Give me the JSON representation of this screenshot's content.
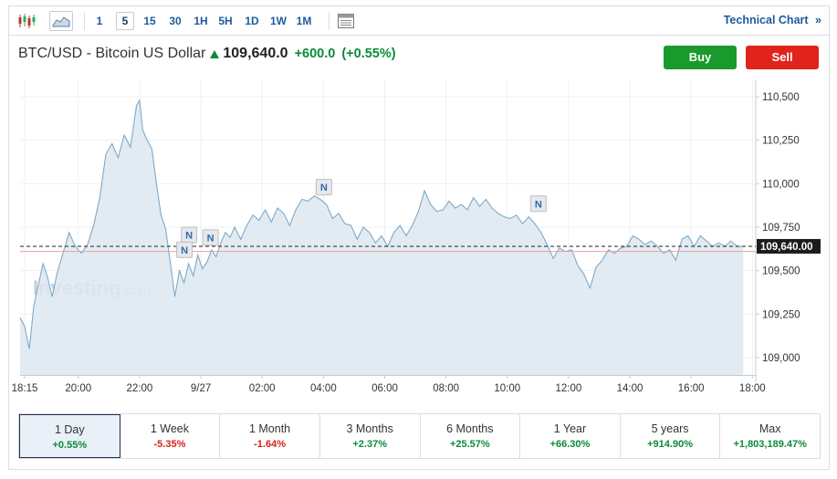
{
  "toolbar": {
    "chart_type_icons": [
      "candlestick-icon",
      "area-chart-icon"
    ],
    "timeframes": [
      "1",
      "5",
      "15",
      "30",
      "1H",
      "5H",
      "1D",
      "1W",
      "1M"
    ],
    "active_timeframe": "5",
    "table_icon": "table-view-icon",
    "technical_chart_label": "Technical Chart",
    "technical_chart_arrow": "»"
  },
  "header": {
    "name": "BTC/USD - Bitcoin US Dollar",
    "price": "109,640.0",
    "change": "+600.0",
    "change_pct": "(+0.55%)",
    "direction": "up"
  },
  "buttons": {
    "buy": "Buy",
    "sell": "Sell"
  },
  "colors": {
    "buy": "#1a9a2b",
    "sell": "#e0241c",
    "line": "#7fa9c9",
    "fill": "#dde8f0",
    "positive": "#0b8a3a",
    "negative": "#d3231b"
  },
  "watermark": {
    "text": "Investing",
    "suffix": ".com"
  },
  "chart_data": {
    "type": "area",
    "ylim": [
      108900,
      110600
    ],
    "y_ticks": [
      {
        "value": 110500,
        "label": "110,500"
      },
      {
        "value": 110250,
        "label": "110,250"
      },
      {
        "value": 110000,
        "label": "110,000"
      },
      {
        "value": 109750,
        "label": "109,750"
      },
      {
        "value": 109500,
        "label": "109,500"
      },
      {
        "value": 109250,
        "label": "109,250"
      },
      {
        "value": 109000,
        "label": "109,000"
      }
    ],
    "x_ticks": [
      {
        "hour": 18.25,
        "label": "18:15"
      },
      {
        "hour": 20,
        "label": "20:00"
      },
      {
        "hour": 22,
        "label": "22:00"
      },
      {
        "hour": 24,
        "label": "9/27"
      },
      {
        "hour": 26,
        "label": "02:00"
      },
      {
        "hour": 28,
        "label": "04:00"
      },
      {
        "hour": 30,
        "label": "06:00"
      },
      {
        "hour": 32,
        "label": "08:00"
      },
      {
        "hour": 34,
        "label": "10:00"
      },
      {
        "hour": 36,
        "label": "12:00"
      },
      {
        "hour": 38,
        "label": "14:00"
      },
      {
        "hour": 40,
        "label": "16:00"
      },
      {
        "hour": 42,
        "label": "18:00"
      }
    ],
    "xlim_hours": [
      18.1,
      42.05
    ],
    "last_price": {
      "value": 109640,
      "label": "109,640.00"
    },
    "reference_line": 109610,
    "news_markers": [
      {
        "hour": 23.6,
        "value": 109650,
        "label": "N"
      },
      {
        "hour": 23.45,
        "value": 109565,
        "label": "N"
      },
      {
        "hour": 24.3,
        "value": 109635,
        "label": "N"
      },
      {
        "hour": 28.0,
        "value": 109925,
        "label": "N"
      },
      {
        "hour": 35.0,
        "value": 109830,
        "label": "N"
      }
    ],
    "series": [
      {
        "points": [
          [
            18.1,
            109230
          ],
          [
            18.25,
            109180
          ],
          [
            18.4,
            109050
          ],
          [
            18.55,
            109300
          ],
          [
            18.7,
            109420
          ],
          [
            18.85,
            109540
          ],
          [
            19.0,
            109460
          ],
          [
            19.15,
            109350
          ],
          [
            19.3,
            109480
          ],
          [
            19.5,
            109600
          ],
          [
            19.7,
            109720
          ],
          [
            19.9,
            109640
          ],
          [
            20.1,
            109600
          ],
          [
            20.3,
            109650
          ],
          [
            20.5,
            109760
          ],
          [
            20.7,
            109920
          ],
          [
            20.9,
            110170
          ],
          [
            21.1,
            110230
          ],
          [
            21.3,
            110150
          ],
          [
            21.5,
            110280
          ],
          [
            21.7,
            110210
          ],
          [
            21.9,
            110450
          ],
          [
            22.0,
            110480
          ],
          [
            22.1,
            110310
          ],
          [
            22.25,
            110250
          ],
          [
            22.4,
            110200
          ],
          [
            22.55,
            110000
          ],
          [
            22.7,
            109820
          ],
          [
            22.85,
            109740
          ],
          [
            23.0,
            109550
          ],
          [
            23.15,
            109350
          ],
          [
            23.3,
            109500
          ],
          [
            23.45,
            109430
          ],
          [
            23.6,
            109540
          ],
          [
            23.75,
            109470
          ],
          [
            23.9,
            109590
          ],
          [
            24.05,
            109510
          ],
          [
            24.2,
            109550
          ],
          [
            24.35,
            109620
          ],
          [
            24.5,
            109580
          ],
          [
            24.65,
            109660
          ],
          [
            24.8,
            109720
          ],
          [
            24.95,
            109690
          ],
          [
            25.1,
            109750
          ],
          [
            25.3,
            109680
          ],
          [
            25.5,
            109760
          ],
          [
            25.7,
            109820
          ],
          [
            25.9,
            109790
          ],
          [
            26.1,
            109850
          ],
          [
            26.3,
            109780
          ],
          [
            26.5,
            109860
          ],
          [
            26.7,
            109830
          ],
          [
            26.9,
            109760
          ],
          [
            27.1,
            109850
          ],
          [
            27.3,
            109910
          ],
          [
            27.5,
            109900
          ],
          [
            27.7,
            109930
          ],
          [
            27.9,
            109910
          ],
          [
            28.1,
            109880
          ],
          [
            28.3,
            109800
          ],
          [
            28.5,
            109830
          ],
          [
            28.7,
            109770
          ],
          [
            28.9,
            109760
          ],
          [
            29.1,
            109680
          ],
          [
            29.3,
            109750
          ],
          [
            29.5,
            109720
          ],
          [
            29.7,
            109660
          ],
          [
            29.9,
            109700
          ],
          [
            30.1,
            109640
          ],
          [
            30.3,
            109720
          ],
          [
            30.5,
            109760
          ],
          [
            30.7,
            109700
          ],
          [
            30.9,
            109760
          ],
          [
            31.1,
            109840
          ],
          [
            31.3,
            109960
          ],
          [
            31.5,
            109880
          ],
          [
            31.7,
            109840
          ],
          [
            31.9,
            109850
          ],
          [
            32.1,
            109900
          ],
          [
            32.3,
            109860
          ],
          [
            32.5,
            109880
          ],
          [
            32.7,
            109850
          ],
          [
            32.9,
            109920
          ],
          [
            33.1,
            109870
          ],
          [
            33.3,
            109910
          ],
          [
            33.5,
            109860
          ],
          [
            33.7,
            109830
          ],
          [
            33.9,
            109810
          ],
          [
            34.1,
            109800
          ],
          [
            34.3,
            109820
          ],
          [
            34.5,
            109770
          ],
          [
            34.7,
            109810
          ],
          [
            34.9,
            109770
          ],
          [
            35.1,
            109720
          ],
          [
            35.3,
            109650
          ],
          [
            35.5,
            109570
          ],
          [
            35.7,
            109630
          ],
          [
            35.9,
            109610
          ],
          [
            36.1,
            109620
          ],
          [
            36.3,
            109530
          ],
          [
            36.5,
            109480
          ],
          [
            36.7,
            109400
          ],
          [
            36.9,
            109520
          ],
          [
            37.1,
            109560
          ],
          [
            37.3,
            109620
          ],
          [
            37.5,
            109600
          ],
          [
            37.7,
            109630
          ],
          [
            37.9,
            109640
          ],
          [
            38.1,
            109700
          ],
          [
            38.3,
            109680
          ],
          [
            38.5,
            109650
          ],
          [
            38.7,
            109670
          ],
          [
            38.9,
            109640
          ],
          [
            39.1,
            109600
          ],
          [
            39.3,
            109620
          ],
          [
            39.5,
            109560
          ],
          [
            39.7,
            109680
          ],
          [
            39.9,
            109700
          ],
          [
            40.1,
            109640
          ],
          [
            40.3,
            109700
          ],
          [
            40.5,
            109670
          ],
          [
            40.7,
            109640
          ],
          [
            40.9,
            109660
          ],
          [
            41.1,
            109640
          ],
          [
            41.3,
            109670
          ],
          [
            41.5,
            109640
          ],
          [
            41.7,
            109640
          ]
        ]
      }
    ]
  },
  "periods": [
    {
      "label": "1 Day",
      "change": "+0.55%",
      "direction": "pos",
      "active": true
    },
    {
      "label": "1 Week",
      "change": "-5.35%",
      "direction": "neg",
      "active": false
    },
    {
      "label": "1 Month",
      "change": "-1.64%",
      "direction": "neg",
      "active": false
    },
    {
      "label": "3 Months",
      "change": "+2.37%",
      "direction": "pos",
      "active": false
    },
    {
      "label": "6 Months",
      "change": "+25.57%",
      "direction": "pos",
      "active": false
    },
    {
      "label": "1 Year",
      "change": "+66.30%",
      "direction": "pos",
      "active": false
    },
    {
      "label": "5 years",
      "change": "+914.90%",
      "direction": "pos",
      "active": false
    },
    {
      "label": "Max",
      "change": "+1,803,189.47%",
      "direction": "pos",
      "active": false
    }
  ]
}
